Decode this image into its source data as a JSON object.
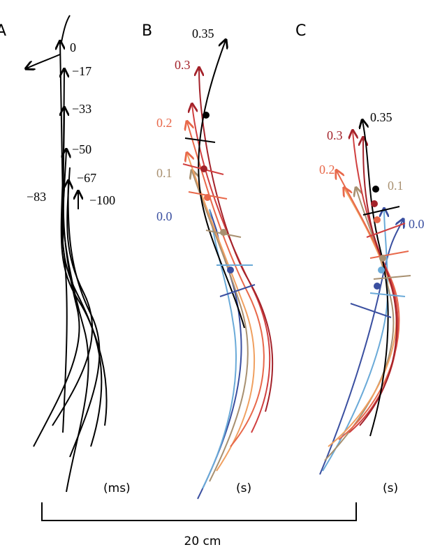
{
  "panels": {
    "a": {
      "letter": "A",
      "labels": [
        "0",
        "−17",
        "−33",
        "−50",
        "−67",
        "−83",
        "−100"
      ],
      "unit": "(ms)"
    },
    "b": {
      "letter": "B",
      "labels": [
        "0.35",
        "0.3",
        "0.2",
        "0.1",
        "0.0"
      ],
      "unit": "(s)"
    },
    "c": {
      "letter": "C",
      "labels": [
        "0.35",
        "0.3",
        "0.2",
        "0.1",
        "0.0"
      ],
      "unit": "(s)"
    }
  },
  "scale_bar": "20 cm"
}
